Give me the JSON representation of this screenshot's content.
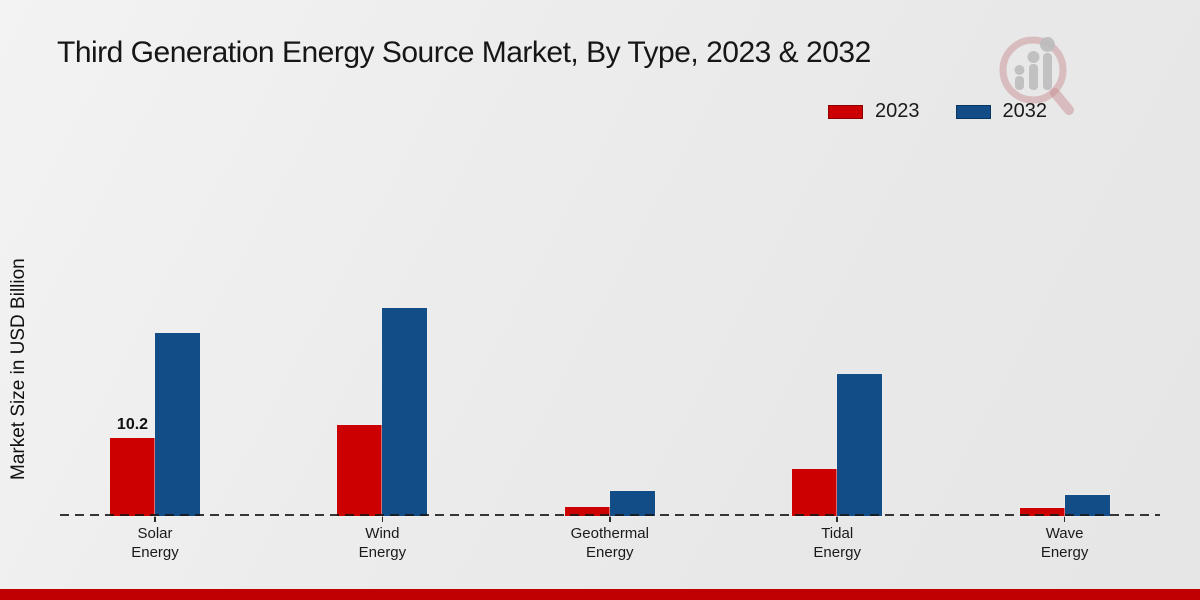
{
  "title": "Third Generation Energy Source Market, By Type, 2023 & 2032",
  "ylabel": "Market Size in USD Billion",
  "legend": [
    {
      "label": "2023",
      "color": "#cc0000",
      "border": "#8e0000"
    },
    {
      "label": "2032",
      "color": "#124d87",
      "border": "#0a355e"
    }
  ],
  "colors": {
    "series_2023": "#cc0000",
    "series_2032": "#124d87",
    "footer_band": "#c00000",
    "background": "#ebebeb",
    "baseline": "#1c1c1c",
    "watermark_pink": "#c98f93",
    "watermark_gray": "#bdbdbd"
  },
  "watermark_icon": "magnifier-bar-chart-logo",
  "chart_data": {
    "type": "bar",
    "categories": [
      "Solar Energy",
      "Wind Energy",
      "Geothermal Energy",
      "Tidal Energy",
      "Wave Energy"
    ],
    "series": [
      {
        "name": "2023",
        "color": "#cc0000",
        "values": [
          10.2,
          11.9,
          1.2,
          6.1,
          1.1
        ]
      },
      {
        "name": "2032",
        "color": "#124d87",
        "values": [
          23.9,
          27.2,
          3.3,
          18.6,
          2.7
        ]
      }
    ],
    "title": "Third Generation Energy Source Market, By Type, 2023 & 2032",
    "xlabel": "",
    "ylabel": "Market Size in USD Billion",
    "ylim": [
      0,
      30
    ],
    "grid": false,
    "legend_position": "top-right",
    "baseline_style": "dashed",
    "data_labels": [
      {
        "series": "2023",
        "category": "Solar Energy",
        "text": "10.2"
      }
    ]
  }
}
